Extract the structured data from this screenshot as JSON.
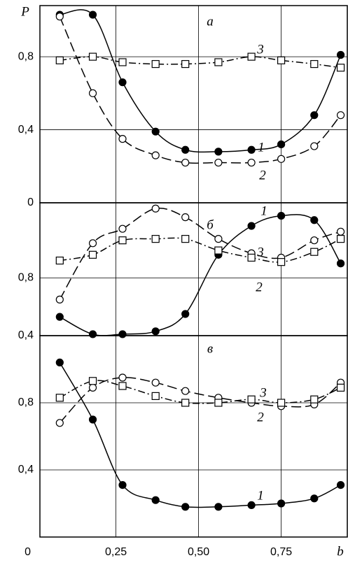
{
  "y_label": "P",
  "x_label": "b",
  "chart_data": [
    {
      "type": "line",
      "title": "а",
      "xlim": [
        0.02,
        0.95
      ],
      "ylim": [
        0,
        1.08
      ],
      "yticks": [
        {
          "value": 0,
          "label": "0"
        },
        {
          "value": 0.4,
          "label": "0,4"
        },
        {
          "value": 0.8,
          "label": "0,8"
        }
      ],
      "x": [
        0.08,
        0.18,
        0.27,
        0.37,
        0.46,
        0.56,
        0.66,
        0.75,
        0.85,
        0.93
      ],
      "series": [
        {
          "name": "1",
          "color": "#000000",
          "marker": "filled-circle",
          "dash": "solid",
          "values": [
            1.03,
            1.03,
            0.66,
            0.39,
            0.29,
            0.28,
            0.29,
            0.32,
            0.48,
            0.81
          ]
        },
        {
          "name": "2",
          "color": "#000000",
          "marker": "open-circle",
          "dash": "long-dash",
          "values": [
            1.02,
            0.6,
            0.35,
            0.26,
            0.22,
            0.22,
            0.22,
            0.24,
            0.31,
            0.48
          ]
        },
        {
          "name": "3",
          "color": "#000000",
          "marker": "open-square",
          "dash": "dash-dot",
          "values": [
            0.78,
            0.8,
            0.77,
            0.76,
            0.76,
            0.77,
            0.8,
            0.78,
            0.76,
            0.74
          ]
        }
      ]
    },
    {
      "type": "line",
      "title": "б",
      "xlim": [
        0.02,
        0.95
      ],
      "ylim": [
        0.4,
        1.32
      ],
      "yticks": [
        {
          "value": 0.4,
          "label": "0,4"
        },
        {
          "value": 0.8,
          "label": "0,8"
        }
      ],
      "x": [
        0.08,
        0.18,
        0.27,
        0.37,
        0.46,
        0.56,
        0.66,
        0.75,
        0.85,
        0.93
      ],
      "series": [
        {
          "name": "1",
          "color": "#000000",
          "marker": "filled-circle",
          "dash": "solid",
          "values": [
            0.53,
            0.41,
            0.41,
            0.43,
            0.55,
            0.96,
            1.16,
            1.23,
            1.2,
            0.9
          ]
        },
        {
          "name": "2",
          "color": "#000000",
          "marker": "open-circle",
          "dash": "long-dash",
          "values": [
            0.65,
            1.04,
            1.14,
            1.28,
            1.22,
            1.07,
            0.97,
            0.94,
            1.06,
            1.12
          ]
        },
        {
          "name": "3",
          "color": "#000000",
          "marker": "open-square",
          "dash": "dash-dot",
          "values": [
            0.92,
            0.96,
            1.06,
            1.07,
            1.07,
            0.99,
            0.94,
            0.91,
            0.98,
            1.07
          ]
        }
      ]
    },
    {
      "type": "line",
      "title": "в",
      "xlim": [
        0.02,
        0.95
      ],
      "ylim": [
        0,
        1.2
      ],
      "yticks": [
        {
          "value": 0.4,
          "label": "0,4"
        },
        {
          "value": 0.8,
          "label": "0,8"
        }
      ],
      "xticks": [
        0,
        {
          "value": 0.25,
          "label": "0,25"
        },
        {
          "value": 0.5,
          "label": "0,50"
        },
        {
          "value": 0.75,
          "label": "0,75"
        }
      ],
      "x": [
        0.08,
        0.18,
        0.27,
        0.37,
        0.46,
        0.56,
        0.66,
        0.75,
        0.85,
        0.93
      ],
      "series": [
        {
          "name": "1",
          "color": "#000000",
          "marker": "filled-circle",
          "dash": "solid",
          "values": [
            1.04,
            0.7,
            0.31,
            0.22,
            0.18,
            0.18,
            0.19,
            0.2,
            0.23,
            0.31
          ]
        },
        {
          "name": "2",
          "color": "#000000",
          "marker": "open-circle",
          "dash": "long-dash",
          "values": [
            0.68,
            0.89,
            0.95,
            0.92,
            0.87,
            0.83,
            0.8,
            0.78,
            0.79,
            0.92
          ]
        },
        {
          "name": "3",
          "color": "#000000",
          "marker": "open-square",
          "dash": "dash-dot",
          "values": [
            0.83,
            0.93,
            0.9,
            0.84,
            0.8,
            0.8,
            0.82,
            0.8,
            0.82,
            0.89
          ]
        }
      ]
    }
  ]
}
